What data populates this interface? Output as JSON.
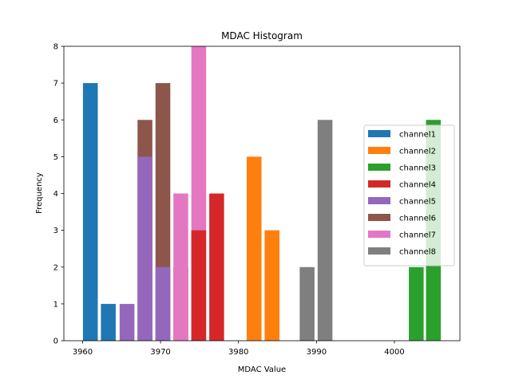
{
  "chart_data": {
    "type": "bar",
    "title": "MDAC Histogram",
    "xlabel": "MDAC Value",
    "ylabel": "Frequency",
    "xlim": [
      3957.6,
      4008.4
    ],
    "ylim": [
      0,
      8
    ],
    "xticks": [
      3960,
      3970,
      3980,
      3990,
      4000
    ],
    "yticks": [
      0,
      1,
      2,
      3,
      4,
      5,
      6,
      7,
      8
    ],
    "legend_position": "center-right",
    "bar_width": 1.9,
    "series": [
      {
        "name": "channel1",
        "color": "#1f77b4",
        "bars": [
          {
            "x": 3961,
            "value": 7
          },
          {
            "x": 3963.3,
            "value": 1
          }
        ]
      },
      {
        "name": "channel2",
        "color": "#ff7f0e",
        "bars": [
          {
            "x": 3982,
            "value": 5
          },
          {
            "x": 3984.3,
            "value": 3
          }
        ]
      },
      {
        "name": "channel3",
        "color": "#2ca02c",
        "bars": [
          {
            "x": 4002.8,
            "value": 2
          },
          {
            "x": 4005,
            "value": 6
          }
        ]
      },
      {
        "name": "channel4",
        "color": "#d62728",
        "bars": [
          {
            "x": 3974.9,
            "value": 3
          },
          {
            "x": 3977.2,
            "value": 4
          }
        ]
      },
      {
        "name": "channel5",
        "color": "#9467bd",
        "bars": [
          {
            "x": 3965.7,
            "value": 1
          },
          {
            "x": 3968,
            "value": 5
          },
          {
            "x": 3970.3,
            "value": 2
          }
        ]
      },
      {
        "name": "channel6",
        "color": "#8c564b",
        "bars": [
          {
            "x": 3968,
            "value": 6
          },
          {
            "x": 3970.3,
            "value": 7
          },
          {
            "x": 3972.6,
            "value": 2
          }
        ]
      },
      {
        "name": "channel7",
        "color": "#e377c2",
        "bars": [
          {
            "x": 3972.6,
            "value": 4
          },
          {
            "x": 3974.9,
            "value": 8
          }
        ]
      },
      {
        "name": "channel8",
        "color": "#7f7f7f",
        "bars": [
          {
            "x": 3988.8,
            "value": 2
          },
          {
            "x": 3991.1,
            "value": 6
          }
        ]
      }
    ],
    "draw_order": [
      [
        "channel1",
        0
      ],
      [
        "channel1",
        1
      ],
      [
        "channel2",
        0
      ],
      [
        "channel2",
        1
      ],
      [
        "channel3",
        0
      ],
      [
        "channel3",
        1
      ],
      [
        "channel6",
        0
      ],
      [
        "channel6",
        1
      ],
      [
        "channel6",
        2
      ],
      [
        "channel5",
        0
      ],
      [
        "channel5",
        1
      ],
      [
        "channel5",
        2
      ],
      [
        "channel7",
        0
      ],
      [
        "channel7",
        1
      ],
      [
        "channel4",
        0
      ],
      [
        "channel4",
        1
      ],
      [
        "channel8",
        0
      ],
      [
        "channel8",
        1
      ]
    ]
  }
}
